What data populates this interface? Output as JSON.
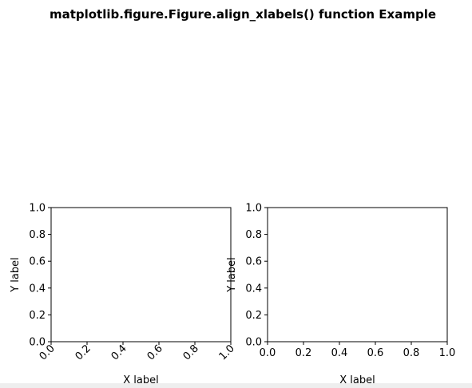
{
  "chart_data": {
    "title": "matplotlib.figure.Figure.align_xlabels() function Example",
    "colors": {
      "background": "#ffffff",
      "axes": "#000000",
      "text": "#000000",
      "toolbar_strip": "#eeeeee"
    },
    "subplots": [
      {
        "type": "line",
        "series": [],
        "xlabel": "X label",
        "ylabel": "Y label",
        "xlim": [
          0.0,
          1.0
        ],
        "ylim": [
          0.0,
          1.0
        ],
        "xticks": [
          "0.0",
          "0.2",
          "0.4",
          "0.6",
          "0.8",
          "1.0"
        ],
        "yticks": [
          "0.0",
          "0.2",
          "0.4",
          "0.6",
          "0.8",
          "1.0"
        ],
        "xtick_rotation": 45,
        "grid": false
      },
      {
        "type": "line",
        "series": [],
        "xlabel": "X label",
        "ylabel": "Y label",
        "xlim": [
          0.0,
          1.0
        ],
        "ylim": [
          0.0,
          1.0
        ],
        "xticks": [
          "0.0",
          "0.2",
          "0.4",
          "0.6",
          "0.8",
          "1.0"
        ],
        "yticks": [
          "0.0",
          "0.2",
          "0.4",
          "0.6",
          "0.8",
          "1.0"
        ],
        "xtick_rotation": 0,
        "grid": false
      }
    ]
  }
}
